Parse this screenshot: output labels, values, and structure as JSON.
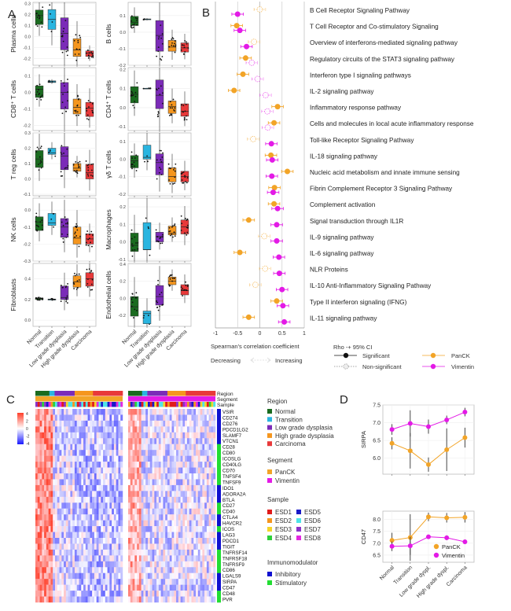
{
  "panels": {
    "a": "A",
    "b": "B",
    "c": "C",
    "d": "D"
  },
  "colors": {
    "normal": "#1a6b1f",
    "transition": "#2ab5e0",
    "low": "#7b2bb8",
    "high": "#f5961e",
    "carcinoma": "#e8393a",
    "panck": "#f2a427",
    "vimentin": "#e31ae6",
    "inhibitory": "#1010d0",
    "stimulatory": "#22dd33"
  },
  "chart_data": [
    {
      "id": "A",
      "type": "box",
      "categories": [
        "Normal",
        "Transition",
        "Low grade dysplasia",
        "High grade dysplasia",
        "Carcinoma"
      ],
      "panels": [
        {
          "ylabel": "Plasma cells",
          "ylim": [
            -0.26,
            0.31
          ],
          "ticks": [
            -0.2,
            -0.1,
            0.0,
            0.1,
            0.2,
            0.3
          ],
          "boxes": [
            [
              0.11,
              0.19,
              0.24
            ],
            [
              0.065,
              0.155,
              0.245
            ],
            [
              -0.12,
              0.03,
              0.17
            ],
            [
              -0.18,
              -0.12,
              -0.02
            ],
            [
              -0.18,
              -0.15,
              -0.13
            ]
          ]
        },
        {
          "ylabel": "B cells",
          "ylim": [
            -0.2,
            0.18
          ],
          "ticks": [
            -0.2,
            -0.1,
            0.0,
            0.1
          ],
          "boxes": [
            [
              0.04,
              0.06,
              0.095
            ],
            [
              0.075,
              0.078,
              0.08
            ],
            [
              -0.115,
              -0.02,
              0.07
            ],
            [
              -0.115,
              -0.09,
              -0.05
            ],
            [
              -0.12,
              -0.095,
              -0.065
            ]
          ]
        },
        {
          "ylabel": "CD8⁺ T cells",
          "ylim": [
            -0.23,
            0.15
          ],
          "ticks": [
            -0.2,
            -0.1,
            0.0,
            0.1
          ],
          "boxes": [
            [
              -0.03,
              0.02,
              0.04
            ],
            [
              0.06,
              0.065,
              0.07
            ],
            [
              -0.1,
              0.0,
              0.06
            ],
            [
              -0.13,
              -0.09,
              -0.04
            ],
            [
              -0.145,
              -0.095,
              -0.06
            ]
          ]
        },
        {
          "ylabel": "CD4⁺ T cells",
          "ylim": [
            -0.12,
            0.21
          ],
          "ticks": [
            -0.1,
            0.0,
            0.1,
            0.2
          ],
          "boxes": [
            [
              0.025,
              0.07,
              0.11
            ],
            [
              0.1,
              0.101,
              0.102
            ],
            [
              -0.005,
              0.065,
              0.145
            ],
            [
              -0.03,
              0.005,
              0.035
            ],
            [
              -0.045,
              -0.02,
              0.02
            ]
          ]
        },
        {
          "ylabel": "T reg cells",
          "ylim": [
            -0.11,
            0.3
          ],
          "ticks": [
            -0.1,
            0.0,
            0.1,
            0.2,
            0.3
          ],
          "boxes": [
            [
              0.075,
              0.13,
              0.185
            ],
            [
              0.16,
              0.17,
              0.2
            ],
            [
              0.06,
              0.15,
              0.21
            ],
            [
              0.05,
              0.07,
              0.1
            ],
            [
              0.0,
              0.04,
              0.095
            ]
          ]
        },
        {
          "ylabel": "γδ T cells",
          "ylim": [
            -0.21,
            0.15
          ],
          "ticks": [
            -0.2,
            -0.1,
            0.0,
            0.1
          ],
          "boxes": [
            [
              -0.05,
              -0.01,
              0.02
            ],
            [
              0.0,
              0.01,
              0.08
            ],
            [
              -0.09,
              -0.02,
              0.03
            ],
            [
              -0.13,
              -0.1,
              -0.05
            ],
            [
              -0.13,
              -0.1,
              -0.07
            ]
          ]
        },
        {
          "ylabel": "NK cells",
          "ylim": [
            -0.3,
            0.07
          ],
          "ticks": [
            -0.3,
            -0.2,
            -0.1,
            0.0
          ],
          "boxes": [
            [
              -0.12,
              -0.07,
              -0.04
            ],
            [
              -0.09,
              -0.075,
              -0.02
            ],
            [
              -0.16,
              -0.1,
              -0.05
            ],
            [
              -0.2,
              -0.165,
              -0.1
            ],
            [
              -0.2,
              -0.17,
              -0.14
            ]
          ]
        },
        {
          "ylabel": "Macrophages",
          "ylim": [
            -0.11,
            0.25
          ],
          "ticks": [
            -0.1,
            0.0,
            0.1,
            0.2
          ],
          "boxes": [
            [
              -0.055,
              -0.02,
              0.05
            ],
            [
              -0.045,
              -0.045,
              0.11
            ],
            [
              0.0,
              0.03,
              0.055
            ],
            [
              0.04,
              0.05,
              0.09
            ],
            [
              0.045,
              0.085,
              0.125
            ]
          ]
        },
        {
          "ylabel": "Fibroblasts",
          "ylim": [
            -0.06,
            0.55
          ],
          "ticks": [
            0.0,
            0.2,
            0.4
          ],
          "boxes": [
            [
              0.2,
              0.21,
              0.215
            ],
            [
              0.195,
              0.2,
              0.205
            ],
            [
              0.2,
              0.22,
              0.33
            ],
            [
              0.32,
              0.37,
              0.43
            ],
            [
              0.33,
              0.4,
              0.46
            ]
          ]
        },
        {
          "ylabel": "Endothelial cells",
          "ylim": [
            -0.33,
            0.41
          ],
          "ticks": [
            -0.2,
            0.0,
            0.2,
            0.4
          ],
          "boxes": [
            [
              -0.21,
              -0.1,
              0.02
            ],
            [
              -0.3,
              -0.18,
              -0.15
            ],
            [
              -0.08,
              0.02,
              0.15
            ],
            [
              0.16,
              0.2,
              0.25
            ],
            [
              0.04,
              0.09,
              0.16
            ]
          ]
        }
      ]
    },
    {
      "id": "B",
      "type": "forest",
      "xlabel": "Spearman's correlation coefficient",
      "xlim": [
        -1,
        1
      ],
      "xticks": [
        "-1",
        "-0.5",
        "0",
        "0.5",
        "1"
      ],
      "direction": {
        "left": "Decreasing",
        "right": "Increasing"
      },
      "legend": {
        "title": "Rho -+ 95% CI",
        "significant": "Significant",
        "non_significant": "Non-significant",
        "panck": "PanCK",
        "vimentin": "Vimentin"
      },
      "pathways": [
        {
          "name": "B Cell Receptor Signaling Pathway",
          "panck": 0.0,
          "panck_sig": false,
          "vim": -0.5,
          "vim_sig": true
        },
        {
          "name": "T Cell Receptor and Co-stimulatory Signaling",
          "panck": -0.52,
          "panck_sig": true,
          "vim": -0.45,
          "vim_sig": true
        },
        {
          "name": "Overview of interferons-mediated signaling pathway",
          "panck": -0.13,
          "panck_sig": false,
          "vim": -0.3,
          "vim_sig": true
        },
        {
          "name": "Regulatory circuits of the STAT3 signaling pathway",
          "panck": -0.32,
          "panck_sig": true,
          "vim": -0.18,
          "vim_sig": false
        },
        {
          "name": "Interferon type I signaling pathways",
          "panck": -0.38,
          "panck_sig": true,
          "vim": -0.05,
          "vim_sig": false
        },
        {
          "name": "IL-2 signaling pathway",
          "panck": -0.58,
          "panck_sig": true,
          "vim": 0.13,
          "vim_sig": false
        },
        {
          "name": "Inflammatory response pathway",
          "panck": 0.4,
          "panck_sig": true,
          "vim": 0.17,
          "vim_sig": false
        },
        {
          "name": "Cells and molecules in local acute inflammatory response",
          "panck": 0.32,
          "panck_sig": true,
          "vim": 0.18,
          "vim_sig": false
        },
        {
          "name": "Toll-like Receptor Signaling Pathway",
          "panck": -0.15,
          "panck_sig": false,
          "vim": 0.26,
          "vim_sig": true
        },
        {
          "name": "IL-18 signaling pathway",
          "panck": 0.25,
          "panck_sig": true,
          "vim": 0.28,
          "vim_sig": true
        },
        {
          "name": "Nucleic acid metabolism and innate immune sensing",
          "panck": 0.62,
          "panck_sig": true,
          "vim": 0.27,
          "vim_sig": true
        },
        {
          "name": "Fibrin Complement Receptor 3 Signaling Pathway",
          "panck": 0.33,
          "panck_sig": true,
          "vim": 0.3,
          "vim_sig": true
        },
        {
          "name": "Complement activation",
          "panck": 0.32,
          "panck_sig": true,
          "vim": 0.4,
          "vim_sig": true
        },
        {
          "name": "Signal transduction through IL1R",
          "panck": -0.25,
          "panck_sig": true,
          "vim": 0.38,
          "vim_sig": true
        },
        {
          "name": "IL-9 signaling pathway",
          "panck": 0.1,
          "panck_sig": false,
          "vim": 0.38,
          "vim_sig": true
        },
        {
          "name": "IL-6 signaling pathway",
          "panck": -0.45,
          "panck_sig": true,
          "vim": 0.43,
          "vim_sig": true
        },
        {
          "name": "NLR Proteins",
          "panck": 0.12,
          "panck_sig": false,
          "vim": 0.44,
          "vim_sig": true
        },
        {
          "name": "IL-10 Anti-Inflammatory Signaling Pathway",
          "panck": -0.1,
          "panck_sig": false,
          "vim": 0.5,
          "vim_sig": true
        },
        {
          "name": "Type II interferon signaling (IFNG)",
          "panck": 0.38,
          "panck_sig": true,
          "vim": 0.52,
          "vim_sig": true
        },
        {
          "name": "IL-11 signaling pathway",
          "panck": -0.25,
          "panck_sig": true,
          "vim": 0.55,
          "vim_sig": true
        }
      ]
    },
    {
      "id": "C",
      "type": "heatmap",
      "scale_ticks": [
        "4",
        "2",
        "0",
        "-2",
        "-4"
      ],
      "annotation_rows": [
        "Region",
        "Segment",
        "Sample"
      ],
      "genes": [
        {
          "name": "VSIR",
          "type": "Inhibitory"
        },
        {
          "name": "CD274",
          "type": "Inhibitory"
        },
        {
          "name": "CD276",
          "type": "Inhibitory"
        },
        {
          "name": "PDCD1LG2",
          "type": "Inhibitory"
        },
        {
          "name": "SLAMF7",
          "type": "Inhibitory"
        },
        {
          "name": "VTCN1",
          "type": "Inhibitory"
        },
        {
          "name": "CD28",
          "type": "Stimulatory"
        },
        {
          "name": "CD80",
          "type": "Stimulatory"
        },
        {
          "name": "ICOSLG",
          "type": "Stimulatory"
        },
        {
          "name": "CD40LG",
          "type": "Stimulatory"
        },
        {
          "name": "CD70",
          "type": "Stimulatory"
        },
        {
          "name": "TNFSF4",
          "type": "Stimulatory"
        },
        {
          "name": "TNFSF9",
          "type": "Stimulatory"
        },
        {
          "name": "IDO1",
          "type": "Inhibitory"
        },
        {
          "name": "ADORA2A",
          "type": "Inhibitory"
        },
        {
          "name": "BTLA",
          "type": "Inhibitory"
        },
        {
          "name": "CD27",
          "type": "Stimulatory"
        },
        {
          "name": "CD40",
          "type": "Stimulatory"
        },
        {
          "name": "CTLA4",
          "type": "Inhibitory"
        },
        {
          "name": "HAVCR2",
          "type": "Inhibitory"
        },
        {
          "name": "ICOS",
          "type": "Stimulatory"
        },
        {
          "name": "LAG3",
          "type": "Inhibitory"
        },
        {
          "name": "PDCD1",
          "type": "Inhibitory"
        },
        {
          "name": "TIGIT",
          "type": "Inhibitory"
        },
        {
          "name": "TNFRSF14",
          "type": "Stimulatory"
        },
        {
          "name": "TNFRSF18",
          "type": "Stimulatory"
        },
        {
          "name": "TNFRSF9",
          "type": "Stimulatory"
        },
        {
          "name": "CD86",
          "type": "Stimulatory"
        },
        {
          "name": "LGALS9",
          "type": "Inhibitory"
        },
        {
          "name": "SIRPA",
          "type": "Inhibitory"
        },
        {
          "name": "CD47",
          "type": "Inhibitory"
        },
        {
          "name": "CD48",
          "type": "Stimulatory"
        },
        {
          "name": "PVR",
          "type": "Stimulatory"
        }
      ],
      "region_fractions": [
        0.16,
        0.06,
        0.23,
        0.21,
        0.34
      ],
      "legend": {
        "region_title": "Region",
        "regions": [
          "Normal",
          "Transition",
          "Low grade dysplasia",
          "High grade dysplasia",
          "Carcinoma"
        ],
        "segment_title": "Segment",
        "segments": [
          "PanCK",
          "Vimentin"
        ],
        "sample_title": "Sample",
        "samples": [
          {
            "name": "ESD1",
            "color": "#e01b1b"
          },
          {
            "name": "ESD2",
            "color": "#f5961e"
          },
          {
            "name": "ESD3",
            "color": "#f4d42a"
          },
          {
            "name": "ESD4",
            "color": "#2ed03a"
          },
          {
            "name": "ESD5",
            "color": "#1a1ac8"
          },
          {
            "name": "ESD6",
            "color": "#4ee4e8"
          },
          {
            "name": "ESD7",
            "color": "#8a32c8"
          },
          {
            "name": "ESD8",
            "color": "#e428e0"
          }
        ],
        "immuno_title": "Immunomodulator",
        "immuno": [
          "Inhibitory",
          "Stimulatory"
        ]
      }
    },
    {
      "id": "D",
      "type": "line",
      "categories": [
        "Normal",
        "Transition",
        "Low grade dyspl.",
        "High grade dyspl.",
        "Carcinoma"
      ],
      "plots": [
        {
          "ylabel": "SIRPA",
          "ylim": [
            5.55,
            7.5
          ],
          "ticks": [
            6.0,
            6.5,
            7.0,
            7.5
          ],
          "series": [
            {
              "name": "PanCK",
              "values": [
                6.42,
                6.21,
                5.82,
                6.24,
                6.58
              ],
              "err": [
                0.17,
                0.5,
                0.2,
                0.6,
                0.28
              ]
            },
            {
              "name": "Vimentin",
              "values": [
                6.81,
                6.98,
                6.89,
                7.08,
                7.3
              ],
              "err": [
                0.15,
                0.37,
                0.2,
                0.12,
                0.12
              ]
            }
          ]
        },
        {
          "ylabel": "CD47",
          "ylim": [
            6.2,
            8.35
          ],
          "ticks": [
            6.5,
            7.0,
            7.5,
            8.0
          ],
          "series": [
            {
              "name": "PanCK",
              "values": [
                7.12,
                7.24,
                8.11,
                8.07,
                8.09
              ],
              "err": [
                0.32,
                0.98,
                0.18,
                0.2,
                0.22
              ]
            },
            {
              "name": "Vimentin",
              "values": [
                6.87,
                6.89,
                7.27,
                7.23,
                7.06
              ],
              "err": [
                0.2,
                0.38,
                0.08,
                0.1,
                0.1
              ]
            }
          ]
        }
      ],
      "legend": [
        "PanCK",
        "Vimentin"
      ]
    }
  ]
}
